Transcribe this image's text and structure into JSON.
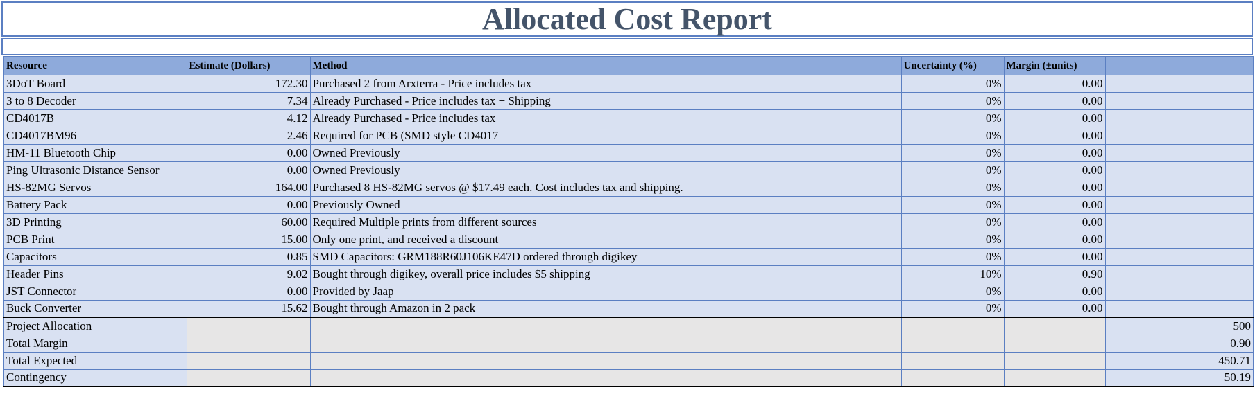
{
  "title": "Allocated Cost Report",
  "headers": {
    "resource": "Resource",
    "estimate": "Estimate  (Dollars)",
    "method": "Method",
    "uncertainty": "Uncertainty (%)",
    "margin": "Margin (±units)",
    "total": ""
  },
  "items": [
    {
      "resource": "3DoT Board",
      "estimate": "172.30",
      "method": "Purchased 2 from Arxterra - Price includes tax",
      "uncertainty": "0%",
      "margin": "0.00"
    },
    {
      "resource": "3 to 8 Decoder",
      "estimate": "7.34",
      "method": "Already Purchased - Price includes tax + Shipping",
      "uncertainty": "0%",
      "margin": "0.00"
    },
    {
      "resource": "CD4017B",
      "estimate": "4.12",
      "method": "Already Purchased - Price includes tax",
      "uncertainty": "0%",
      "margin": "0.00"
    },
    {
      "resource": "CD4017BM96",
      "estimate": "2.46",
      "method": "Required for PCB (SMD style CD4017",
      "uncertainty": "0%",
      "margin": "0.00"
    },
    {
      "resource": "HM-11 Bluetooth Chip",
      "estimate": "0.00",
      "method": "Owned Previously",
      "uncertainty": "0%",
      "margin": "0.00"
    },
    {
      "resource": "Ping Ultrasonic Distance Sensor",
      "estimate": "0.00",
      "method": "Owned Previously",
      "uncertainty": "0%",
      "margin": "0.00"
    },
    {
      "resource": "HS-82MG Servos",
      "estimate": "164.00",
      "method": "Purchased 8 HS-82MG servos @ $17.49 each. Cost includes tax and shipping.",
      "uncertainty": "0%",
      "margin": "0.00"
    },
    {
      "resource": "Battery Pack",
      "estimate": "0.00",
      "method": "Previously Owned",
      "uncertainty": "0%",
      "margin": "0.00"
    },
    {
      "resource": "3D Printing",
      "estimate": "60.00",
      "method": "Required Multiple prints from different sources",
      "uncertainty": "0%",
      "margin": "0.00"
    },
    {
      "resource": "PCB Print",
      "estimate": "15.00",
      "method": "Only one print, and received a discount",
      "uncertainty": "0%",
      "margin": "0.00"
    },
    {
      "resource": "Capacitors",
      "estimate": "0.85",
      "method": "SMD Capacitors: GRM188R60J106KE47D ordered through digikey",
      "uncertainty": "0%",
      "margin": "0.00"
    },
    {
      "resource": "Header Pins",
      "estimate": "9.02",
      "method": "Bought through digikey, overall price includes $5 shipping",
      "uncertainty": "10%",
      "margin": "0.90"
    },
    {
      "resource": "JST Connector",
      "estimate": "0.00",
      "method": "Provided by Jaap",
      "uncertainty": "0%",
      "margin": "0.00"
    },
    {
      "resource": "Buck Converter",
      "estimate": "15.62",
      "method": "Bought through Amazon in 2 pack",
      "uncertainty": "0%",
      "margin": "0.00"
    }
  ],
  "summary": [
    {
      "label": "Project Allocation",
      "value": "500"
    },
    {
      "label": "Total Margin",
      "value": "0.90"
    },
    {
      "label": "Total Expected",
      "value": "450.71"
    },
    {
      "label": "Contingency",
      "value": "50.19"
    }
  ],
  "colors": {
    "title_text": "#44546a",
    "header_bg": "#8eaadb",
    "row_bg": "#d9e1f2",
    "summary_bg": "#e7e6e6",
    "border": "#5b7fc2"
  }
}
